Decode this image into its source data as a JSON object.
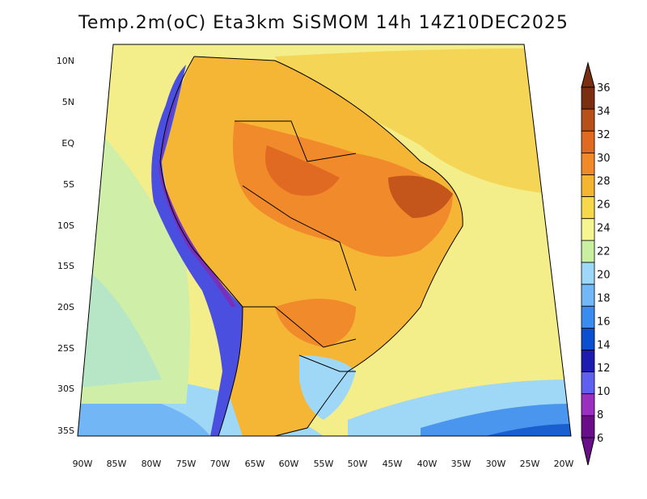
{
  "title": "Temp.2m(oC) Eta3km SiSMOM 14h 14Z10DEC2025",
  "map": {
    "lat_labels": [
      "10N",
      "5N",
      "EQ",
      "5S",
      "10S",
      "15S",
      "20S",
      "25S",
      "30S",
      "35S"
    ],
    "lon_labels": [
      "90W",
      "85W",
      "80W",
      "75W",
      "70W",
      "65W",
      "60W",
      "55W",
      "50W",
      "45W",
      "40W",
      "35W",
      "30W",
      "25W",
      "20W"
    ],
    "land_outline_color": "#000000"
  },
  "colorbar": {
    "labels": [
      "6",
      "8",
      "10",
      "12",
      "14",
      "16",
      "18",
      "20",
      "22",
      "24",
      "26",
      "28",
      "30",
      "32",
      "34",
      "36"
    ],
    "colors": [
      "#6a0d8a",
      "#9a2fc0",
      "#6060f0",
      "#1c1cb0",
      "#0a4fd0",
      "#3a8cf0",
      "#72b8f8",
      "#9ed8f8",
      "#c8f0a0",
      "#f6f690",
      "#f5d94a",
      "#f5b530",
      "#f08a28",
      "#e06a20",
      "#b8501a",
      "#7a3010"
    ]
  }
}
